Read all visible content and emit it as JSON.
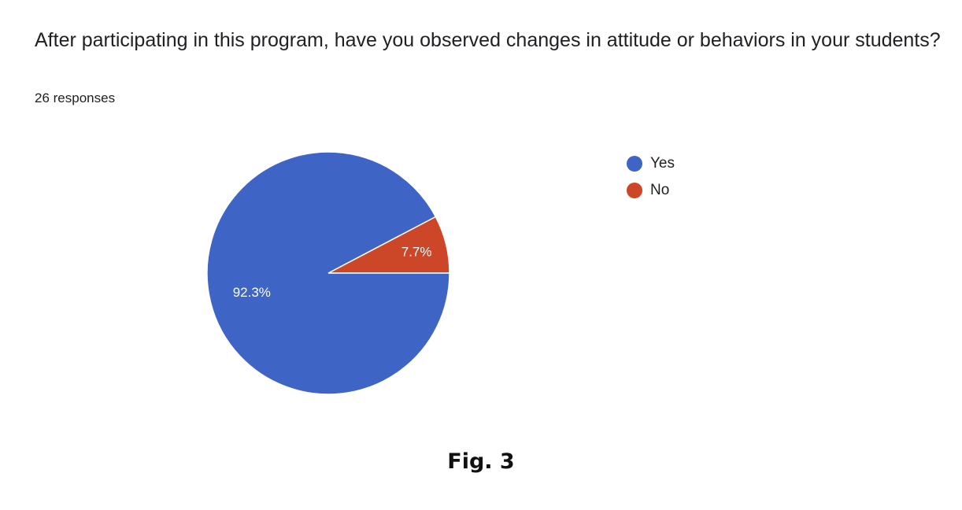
{
  "chart_data": {
    "type": "pie",
    "title": "After participating in this program, have you observed changes in attitude or behaviors in your students?",
    "subtitle": "26 responses",
    "categories": [
      "Yes",
      "No"
    ],
    "values": [
      92.3,
      7.7
    ],
    "data_labels": [
      "92.3%",
      "7.7%"
    ],
    "colors": [
      "#3e64c6",
      "#cc4628"
    ],
    "legend_placement": "right"
  },
  "caption": "Fig. 3"
}
